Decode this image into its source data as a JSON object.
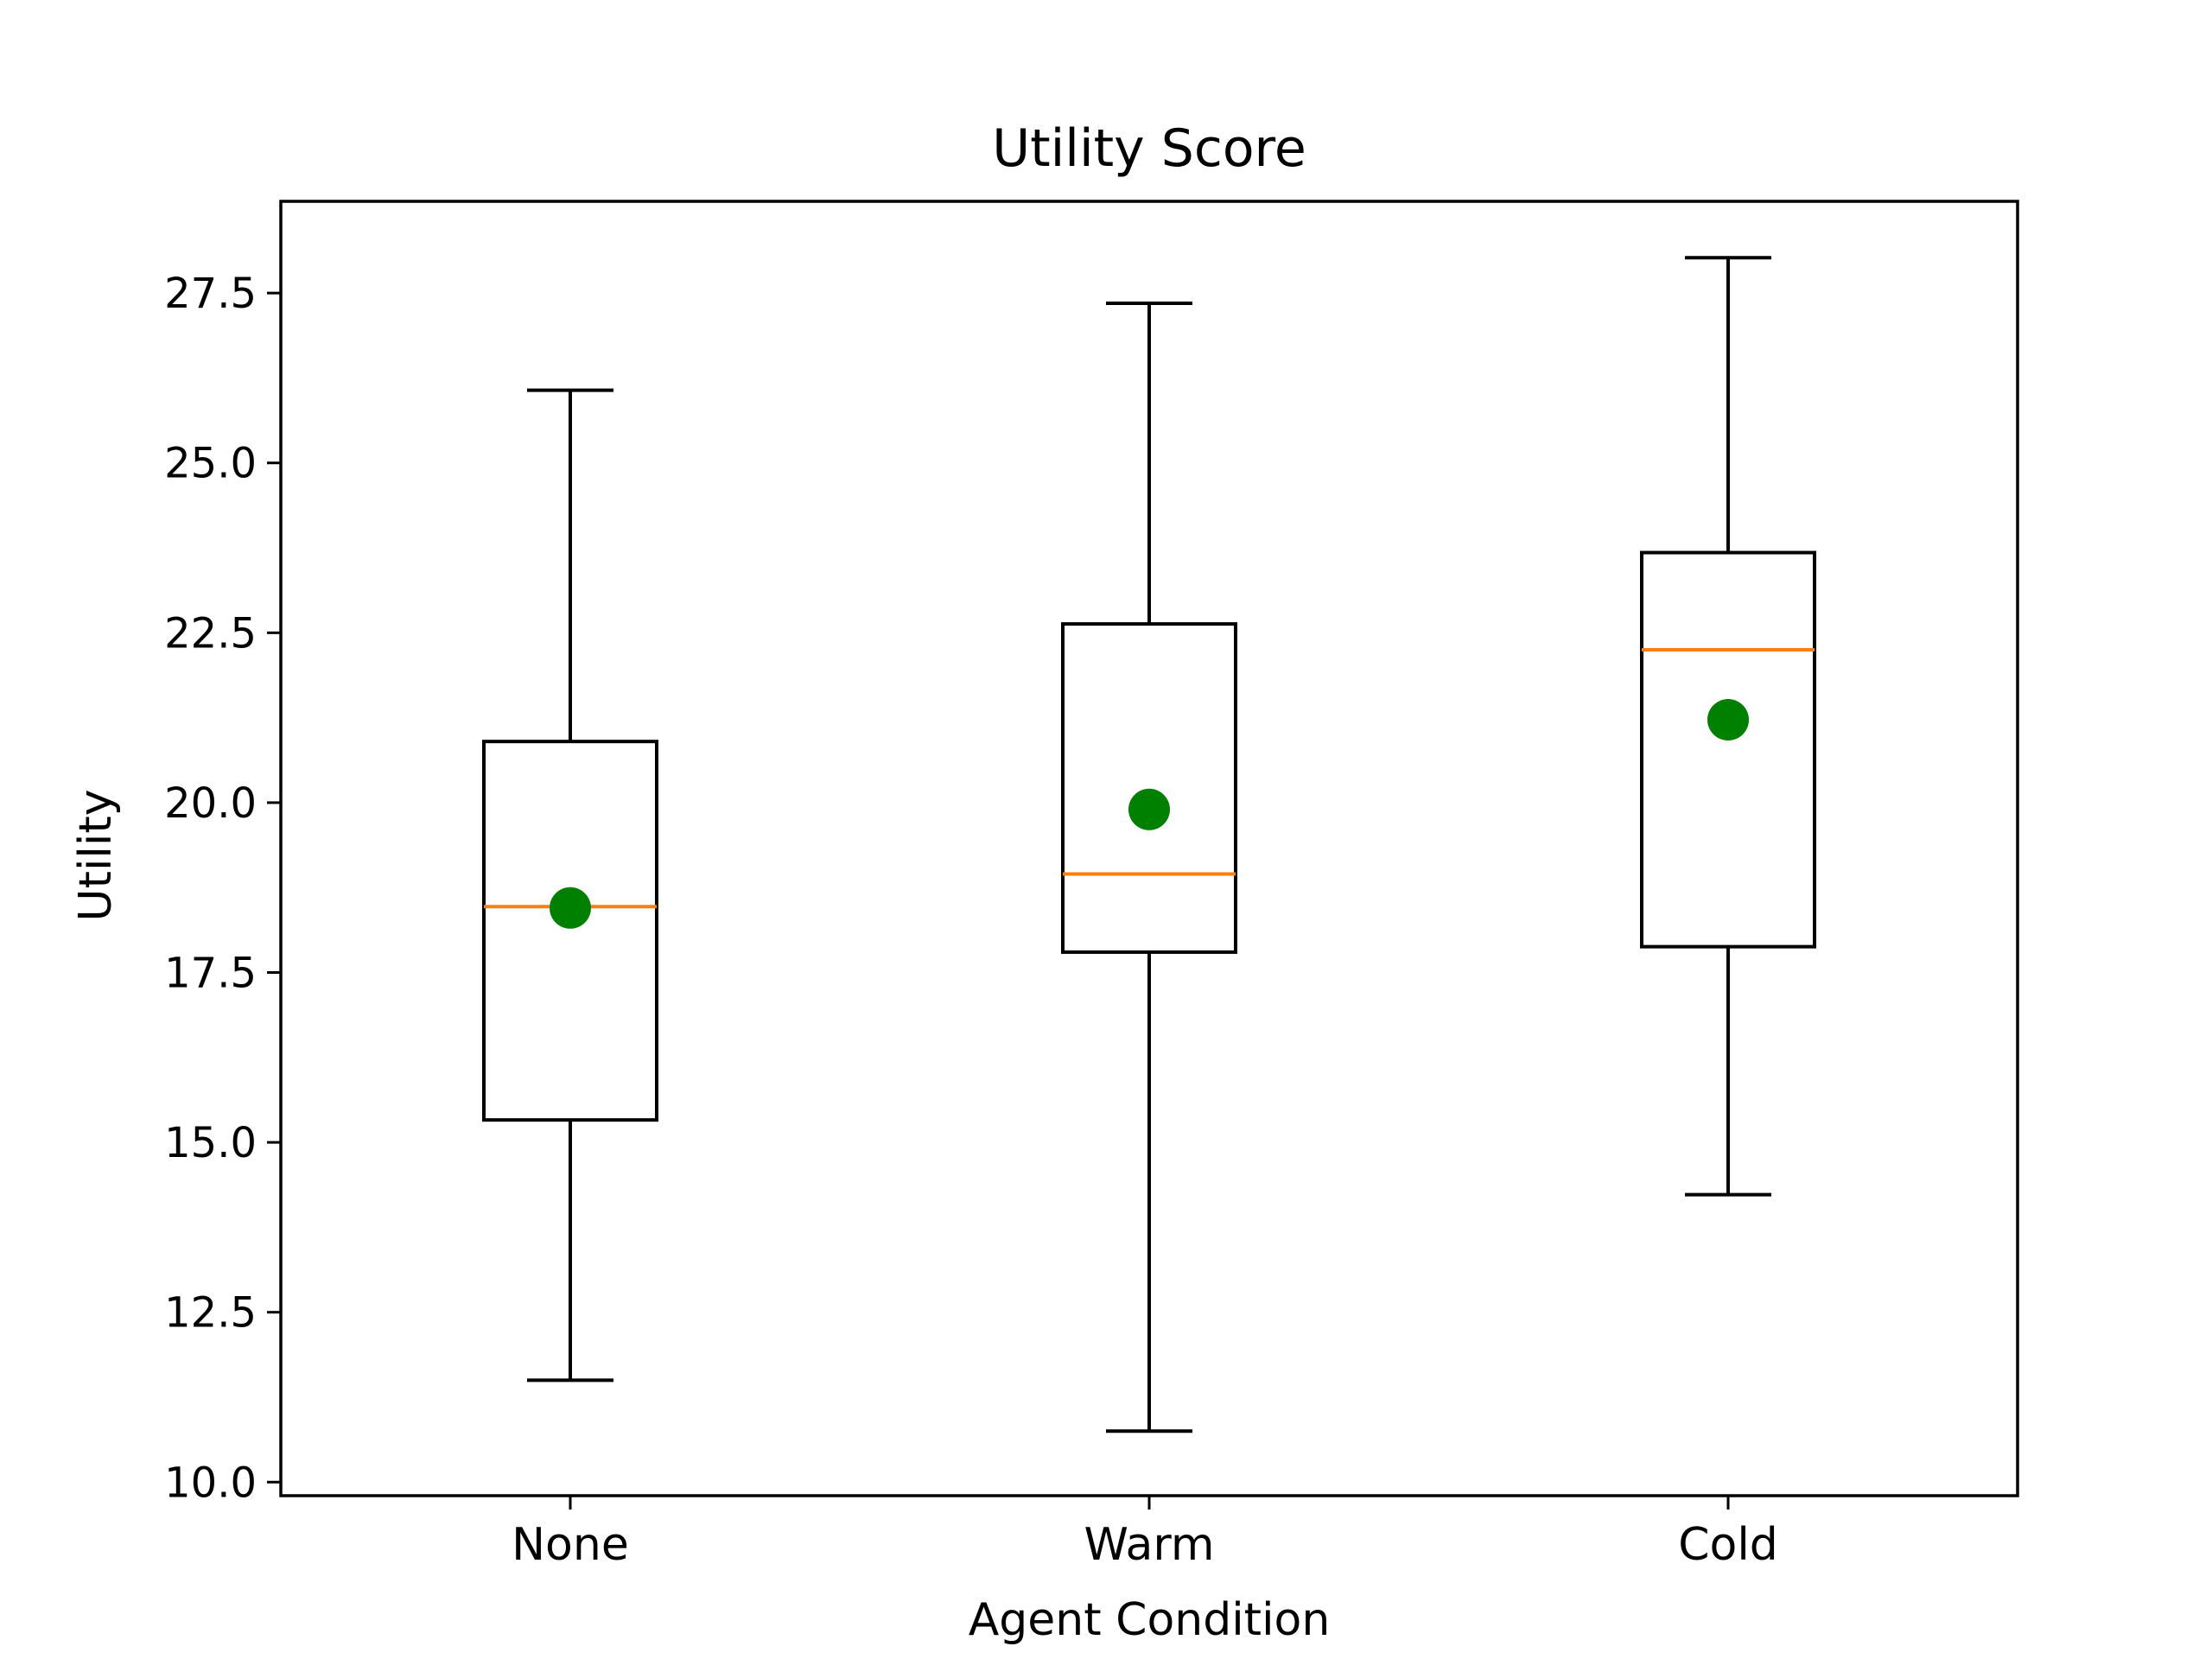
{
  "chart_data": {
    "type": "box",
    "title": "Utility Score",
    "xlabel": "Agent Condition",
    "ylabel": "Utility",
    "categories": [
      "None",
      "Warm",
      "Cold"
    ],
    "ylim": [
      9.8,
      28.85
    ],
    "yticks": [
      10.0,
      12.5,
      15.0,
      17.5,
      20.0,
      22.5,
      25.0,
      27.5
    ],
    "ytick_labels": [
      "10.0",
      "12.5",
      "15.0",
      "17.5",
      "20.0",
      "22.5",
      "25.0",
      "27.5"
    ],
    "boxes": [
      {
        "category": "None",
        "whisker_low": 11.5,
        "q1": 15.33,
        "median": 18.47,
        "q3": 20.9,
        "whisker_high": 26.07,
        "mean": 18.45
      },
      {
        "category": "Warm",
        "whisker_low": 10.75,
        "q1": 17.8,
        "median": 18.95,
        "q3": 22.63,
        "whisker_high": 27.35,
        "mean": 19.9
      },
      {
        "category": "Cold",
        "whisker_low": 14.23,
        "q1": 17.88,
        "median": 22.25,
        "q3": 23.68,
        "whisker_high": 28.02,
        "mean": 21.22
      }
    ],
    "grid": false,
    "colors": {
      "box": "#000000",
      "median": "#ff7f0e",
      "mean": "#008000"
    }
  }
}
